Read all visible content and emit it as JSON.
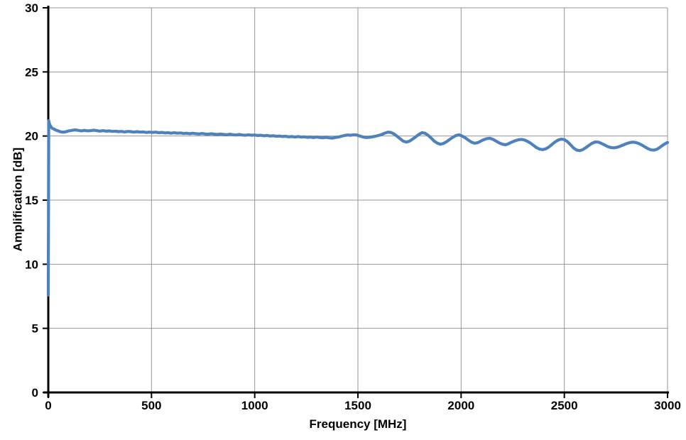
{
  "chart_data": {
    "type": "line",
    "title": "",
    "xlabel": "Frequency [MHz]",
    "ylabel": "Amplification [dB]",
    "xlim": [
      0,
      3000
    ],
    "ylim": [
      0,
      30
    ],
    "x_ticks": [
      0,
      500,
      1000,
      1500,
      2000,
      2500,
      3000
    ],
    "y_ticks": [
      0,
      5,
      10,
      15,
      20,
      25,
      30
    ],
    "grid": true,
    "legend": false,
    "colors": {
      "series": "#4F81BD",
      "grid": "#969696",
      "axis": "#000000",
      "label": "#000000",
      "background": "#ffffff"
    },
    "series": [
      {
        "name": "Amplification",
        "color": "#4F81BD",
        "points": [
          [
            0,
            7.6
          ],
          [
            2,
            21.2
          ],
          [
            6,
            20.92
          ],
          [
            12,
            20.74
          ],
          [
            18,
            20.62
          ],
          [
            25,
            20.56
          ],
          [
            32,
            20.5
          ],
          [
            40,
            20.44
          ],
          [
            48,
            20.4
          ],
          [
            56,
            20.34
          ],
          [
            64,
            20.32
          ],
          [
            72,
            20.3
          ],
          [
            80,
            20.32
          ],
          [
            90,
            20.36
          ],
          [
            100,
            20.4
          ],
          [
            115,
            20.44
          ],
          [
            130,
            20.48
          ],
          [
            145,
            20.44
          ],
          [
            160,
            20.4
          ],
          [
            175,
            20.44
          ],
          [
            190,
            20.4
          ],
          [
            205,
            20.42
          ],
          [
            220,
            20.46
          ],
          [
            235,
            20.42
          ],
          [
            250,
            20.38
          ],
          [
            265,
            20.42
          ],
          [
            280,
            20.38
          ],
          [
            295,
            20.4
          ],
          [
            310,
            20.36
          ],
          [
            325,
            20.38
          ],
          [
            340,
            20.34
          ],
          [
            355,
            20.36
          ],
          [
            370,
            20.32
          ],
          [
            385,
            20.36
          ],
          [
            400,
            20.34
          ],
          [
            415,
            20.3
          ],
          [
            430,
            20.34
          ],
          [
            445,
            20.3
          ],
          [
            460,
            20.32
          ],
          [
            475,
            20.28
          ],
          [
            490,
            20.3
          ],
          [
            505,
            20.28
          ],
          [
            520,
            20.3
          ],
          [
            535,
            20.26
          ],
          [
            550,
            20.28
          ],
          [
            565,
            20.24
          ],
          [
            580,
            20.26
          ],
          [
            595,
            20.22
          ],
          [
            610,
            20.26
          ],
          [
            625,
            20.22
          ],
          [
            640,
            20.24
          ],
          [
            655,
            20.2
          ],
          [
            670,
            20.22
          ],
          [
            685,
            20.18
          ],
          [
            700,
            20.22
          ],
          [
            715,
            20.18
          ],
          [
            730,
            20.16
          ],
          [
            745,
            20.2
          ],
          [
            760,
            20.16
          ],
          [
            775,
            20.14
          ],
          [
            790,
            20.18
          ],
          [
            805,
            20.14
          ],
          [
            820,
            20.12
          ],
          [
            835,
            20.16
          ],
          [
            850,
            20.12
          ],
          [
            865,
            20.1
          ],
          [
            880,
            20.14
          ],
          [
            895,
            20.1
          ],
          [
            910,
            20.08
          ],
          [
            925,
            20.12
          ],
          [
            940,
            20.08
          ],
          [
            955,
            20.06
          ],
          [
            970,
            20.1
          ],
          [
            985,
            20.06
          ],
          [
            1000,
            20.08
          ],
          [
            1015,
            20.04
          ],
          [
            1030,
            20.06
          ],
          [
            1045,
            20.02
          ],
          [
            1060,
            20.04
          ],
          [
            1075,
            20.0
          ],
          [
            1090,
            20.02
          ],
          [
            1105,
            19.98
          ],
          [
            1120,
            20.0
          ],
          [
            1135,
            19.96
          ],
          [
            1150,
            19.98
          ],
          [
            1165,
            19.94
          ],
          [
            1180,
            19.96
          ],
          [
            1195,
            19.92
          ],
          [
            1210,
            19.96
          ],
          [
            1225,
            19.92
          ],
          [
            1240,
            19.94
          ],
          [
            1255,
            19.9
          ],
          [
            1270,
            19.92
          ],
          [
            1285,
            19.88
          ],
          [
            1300,
            19.92
          ],
          [
            1315,
            19.88
          ],
          [
            1330,
            19.86
          ],
          [
            1345,
            19.9
          ],
          [
            1360,
            19.86
          ],
          [
            1375,
            19.84
          ],
          [
            1390,
            19.88
          ],
          [
            1405,
            19.92
          ],
          [
            1420,
            19.98
          ],
          [
            1435,
            20.04
          ],
          [
            1450,
            20.08
          ],
          [
            1465,
            20.06
          ],
          [
            1480,
            20.1
          ],
          [
            1495,
            20.08
          ],
          [
            1510,
            20.0
          ],
          [
            1525,
            19.92
          ],
          [
            1540,
            19.88
          ],
          [
            1555,
            19.9
          ],
          [
            1570,
            19.94
          ],
          [
            1585,
            19.98
          ],
          [
            1600,
            20.04
          ],
          [
            1615,
            20.12
          ],
          [
            1630,
            20.22
          ],
          [
            1645,
            20.3
          ],
          [
            1660,
            20.28
          ],
          [
            1675,
            20.16
          ],
          [
            1690,
            19.98
          ],
          [
            1705,
            19.78
          ],
          [
            1720,
            19.6
          ],
          [
            1735,
            19.52
          ],
          [
            1750,
            19.6
          ],
          [
            1765,
            19.76
          ],
          [
            1780,
            19.94
          ],
          [
            1795,
            20.12
          ],
          [
            1810,
            20.26
          ],
          [
            1825,
            20.22
          ],
          [
            1840,
            20.06
          ],
          [
            1855,
            19.84
          ],
          [
            1870,
            19.6
          ],
          [
            1885,
            19.44
          ],
          [
            1900,
            19.36
          ],
          [
            1915,
            19.42
          ],
          [
            1930,
            19.56
          ],
          [
            1945,
            19.74
          ],
          [
            1960,
            19.9
          ],
          [
            1975,
            20.04
          ],
          [
            1990,
            20.1
          ],
          [
            2005,
            20.0
          ],
          [
            2020,
            19.86
          ],
          [
            2035,
            19.68
          ],
          [
            2050,
            19.52
          ],
          [
            2065,
            19.44
          ],
          [
            2080,
            19.48
          ],
          [
            2095,
            19.6
          ],
          [
            2110,
            19.72
          ],
          [
            2125,
            19.8
          ],
          [
            2140,
            19.82
          ],
          [
            2155,
            19.74
          ],
          [
            2170,
            19.6
          ],
          [
            2185,
            19.46
          ],
          [
            2200,
            19.36
          ],
          [
            2215,
            19.32
          ],
          [
            2230,
            19.4
          ],
          [
            2245,
            19.52
          ],
          [
            2260,
            19.62
          ],
          [
            2275,
            19.7
          ],
          [
            2290,
            19.74
          ],
          [
            2305,
            19.7
          ],
          [
            2320,
            19.6
          ],
          [
            2335,
            19.46
          ],
          [
            2350,
            19.28
          ],
          [
            2365,
            19.1
          ],
          [
            2380,
            18.98
          ],
          [
            2395,
            18.94
          ],
          [
            2410,
            19.0
          ],
          [
            2425,
            19.14
          ],
          [
            2440,
            19.34
          ],
          [
            2455,
            19.54
          ],
          [
            2470,
            19.68
          ],
          [
            2485,
            19.76
          ],
          [
            2500,
            19.72
          ],
          [
            2515,
            19.56
          ],
          [
            2530,
            19.32
          ],
          [
            2545,
            19.06
          ],
          [
            2560,
            18.9
          ],
          [
            2575,
            18.86
          ],
          [
            2590,
            18.94
          ],
          [
            2605,
            19.1
          ],
          [
            2620,
            19.28
          ],
          [
            2635,
            19.44
          ],
          [
            2650,
            19.54
          ],
          [
            2665,
            19.52
          ],
          [
            2680,
            19.42
          ],
          [
            2695,
            19.3
          ],
          [
            2710,
            19.18
          ],
          [
            2725,
            19.1
          ],
          [
            2740,
            19.08
          ],
          [
            2755,
            19.12
          ],
          [
            2770,
            19.2
          ],
          [
            2785,
            19.3
          ],
          [
            2800,
            19.4
          ],
          [
            2815,
            19.48
          ],
          [
            2830,
            19.52
          ],
          [
            2845,
            19.5
          ],
          [
            2860,
            19.42
          ],
          [
            2875,
            19.3
          ],
          [
            2890,
            19.16
          ],
          [
            2905,
            19.02
          ],
          [
            2920,
            18.92
          ],
          [
            2935,
            18.9
          ],
          [
            2950,
            18.98
          ],
          [
            2965,
            19.14
          ],
          [
            2980,
            19.32
          ],
          [
            2995,
            19.46
          ],
          [
            3000,
            19.5
          ]
        ]
      }
    ]
  }
}
